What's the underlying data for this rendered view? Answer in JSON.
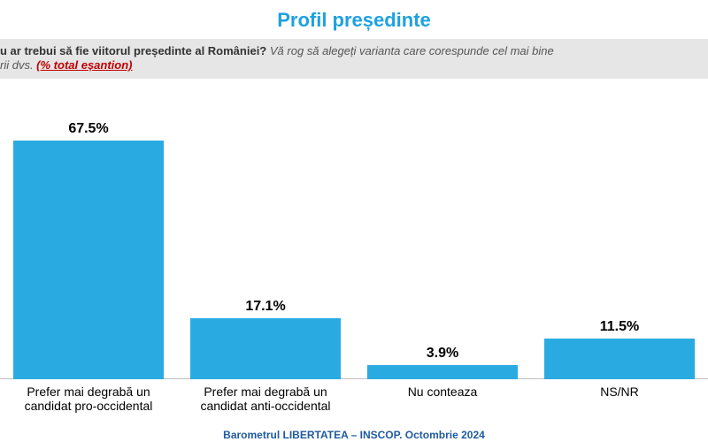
{
  "title": {
    "text": "Profil președinte",
    "color": "#1ea1e0",
    "fontsize": 22
  },
  "question": {
    "band_background": "#e6e6e6",
    "main_text": "u ar trebui să fie viitorul președinte al României?",
    "main_color": "#333333",
    "instruction_text": " Vă rog să alegeți varianta care corespunde cel mai bine",
    "instruction_color": "#555555",
    "line2_prefix": "rii dvs. ",
    "line2_prefix_color": "#555555",
    "note_text": "(% total eșantion)",
    "note_color": "#c00000",
    "fontsize": 13
  },
  "chart": {
    "type": "bar",
    "y_max": 80,
    "bar_color": "#29abe2",
    "bar_width_ratio": 0.85,
    "value_label_color": "#000000",
    "value_label_fontsize": 16,
    "x_label_color": "#000000",
    "x_label_fontsize": 14,
    "baseline_color": "#bfbfbf",
    "categories": [
      "Prefer mai degrabă un candidat pro-occidental",
      "Prefer mai degrabă un candidat anti-occidental",
      "Nu conteaza",
      "NS/NR"
    ],
    "values": [
      67.5,
      17.1,
      3.9,
      11.5
    ],
    "value_labels": [
      "67.5%",
      "17.1%",
      "3.9%",
      "11.5%"
    ]
  },
  "footer": {
    "text": "Barometrul LIBERTATEA – INSCOP. Octombrie 2024",
    "color": "#1f5aa0",
    "fontsize": 12
  }
}
